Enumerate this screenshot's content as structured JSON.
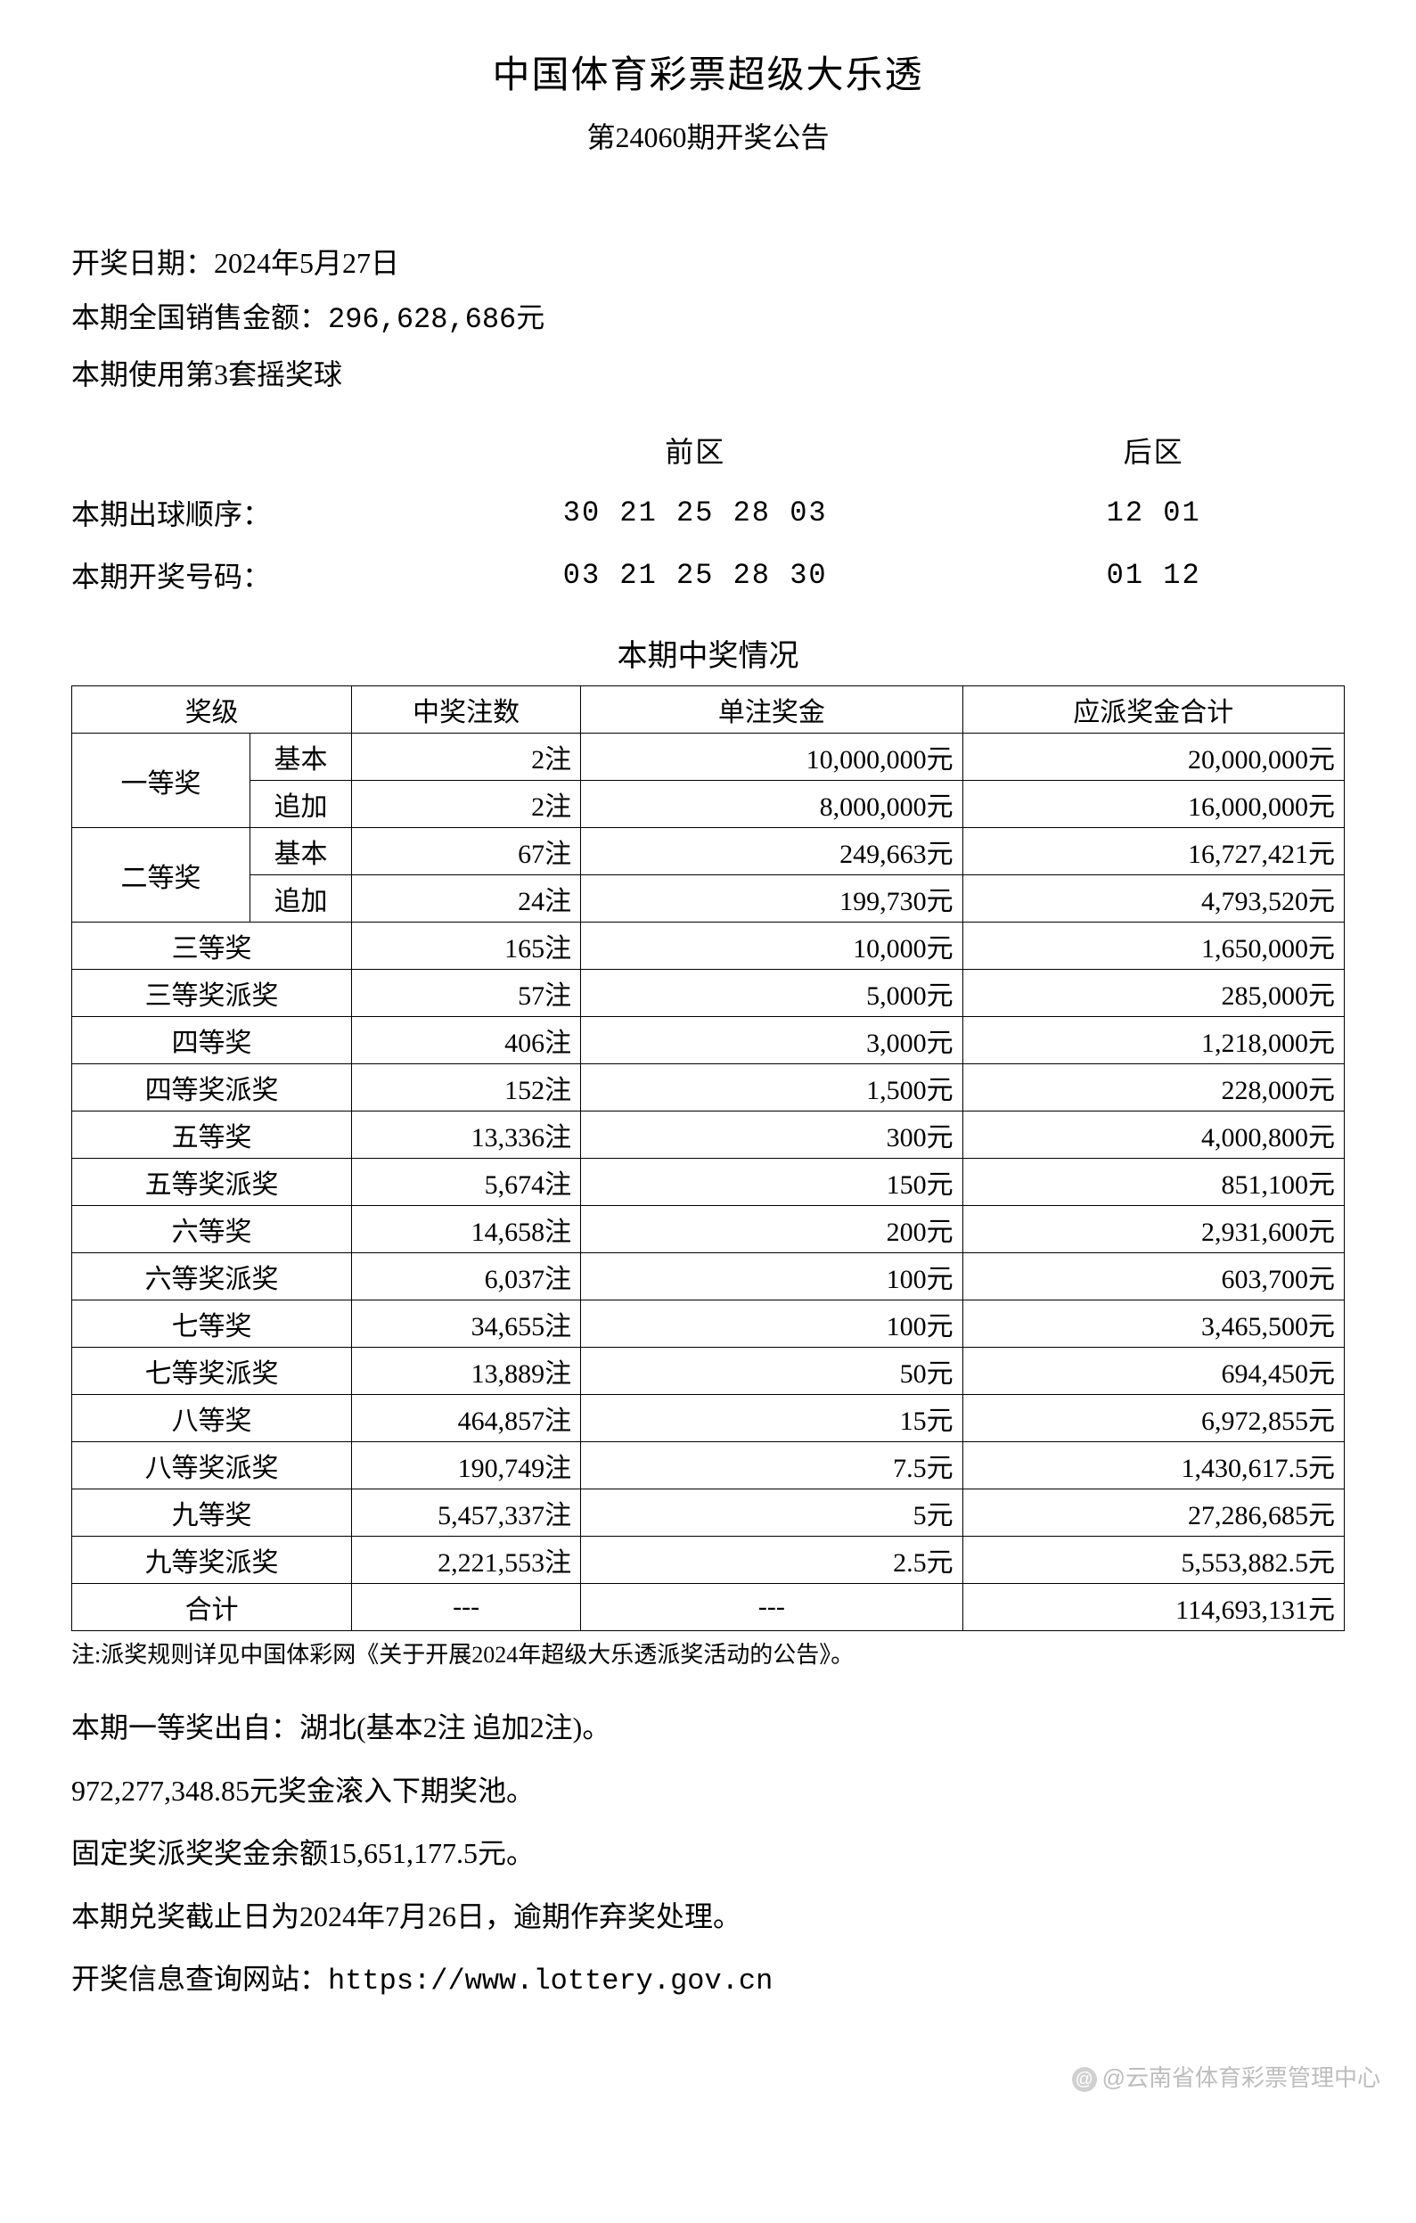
{
  "header": {
    "title": "中国体育彩票超级大乐透",
    "subtitle": "第24060期开奖公告"
  },
  "info": {
    "draw_date_label": "开奖日期：",
    "draw_date": "2024年5月27日",
    "sales_label": "本期全国销售金额：",
    "sales_amount": "296,628,686元",
    "ballset_text": "本期使用第3套摇奖球"
  },
  "numbers": {
    "front_header": "前区",
    "back_header": "后区",
    "order_label": "本期出球顺序：",
    "order_front": "30 21 25 28 03",
    "order_back": "12 01",
    "result_label": "本期开奖号码：",
    "result_front": "03 21 25 28 30",
    "result_back": "01 12"
  },
  "prize_section_title": "本期中奖情况",
  "prize_table": {
    "headers": {
      "level": "奖级",
      "count": "中奖注数",
      "unit": "单注奖金",
      "total": "应派奖金合计"
    },
    "first": {
      "label": "一等奖",
      "basic": {
        "sub": "基本",
        "count": "2注",
        "unit": "10,000,000元",
        "total": "20,000,000元"
      },
      "add": {
        "sub": "追加",
        "count": "2注",
        "unit": "8,000,000元",
        "total": "16,000,000元"
      }
    },
    "second": {
      "label": "二等奖",
      "basic": {
        "sub": "基本",
        "count": "67注",
        "unit": "249,663元",
        "total": "16,727,421元"
      },
      "add": {
        "sub": "追加",
        "count": "24注",
        "unit": "199,730元",
        "total": "4,793,520元"
      }
    },
    "rows": [
      {
        "level": "三等奖",
        "count": "165注",
        "unit": "10,000元",
        "total": "1,650,000元"
      },
      {
        "level": "三等奖派奖",
        "count": "57注",
        "unit": "5,000元",
        "total": "285,000元"
      },
      {
        "level": "四等奖",
        "count": "406注",
        "unit": "3,000元",
        "total": "1,218,000元"
      },
      {
        "level": "四等奖派奖",
        "count": "152注",
        "unit": "1,500元",
        "total": "228,000元"
      },
      {
        "level": "五等奖",
        "count": "13,336注",
        "unit": "300元",
        "total": "4,000,800元"
      },
      {
        "level": "五等奖派奖",
        "count": "5,674注",
        "unit": "150元",
        "total": "851,100元"
      },
      {
        "level": "六等奖",
        "count": "14,658注",
        "unit": "200元",
        "total": "2,931,600元"
      },
      {
        "level": "六等奖派奖",
        "count": "6,037注",
        "unit": "100元",
        "total": "603,700元"
      },
      {
        "level": "七等奖",
        "count": "34,655注",
        "unit": "100元",
        "total": "3,465,500元"
      },
      {
        "level": "七等奖派奖",
        "count": "13,889注",
        "unit": "50元",
        "total": "694,450元"
      },
      {
        "level": "八等奖",
        "count": "464,857注",
        "unit": "15元",
        "total": "6,972,855元"
      },
      {
        "level": "八等奖派奖",
        "count": "190,749注",
        "unit": "7.5元",
        "total": "1,430,617.5元"
      },
      {
        "level": "九等奖",
        "count": "5,457,337注",
        "unit": "5元",
        "total": "27,286,685元"
      },
      {
        "level": "九等奖派奖",
        "count": "2,221,553注",
        "unit": "2.5元",
        "total": "5,553,882.5元"
      }
    ],
    "sum": {
      "level": "合计",
      "count": "---",
      "unit": "---",
      "total": "114,693,131元"
    }
  },
  "footnote": "注:派奖规则详见中国体彩网《关于开展2024年超级大乐透派奖活动的公告》。",
  "post": {
    "origin": "本期一等奖出自：湖北(基本2注 追加2注)。",
    "rollover": "972,277,348.85元奖金滚入下期奖池。",
    "fixed_balance": "固定奖派奖奖金余额15,651,177.5元。",
    "deadline": "本期兑奖截止日为2024年7月26日，逾期作弃奖处理。",
    "website_label": "开奖信息查询网站：",
    "website_url": "https://www.lottery.gov.cn"
  },
  "watermark": "@云南省体育彩票管理中心"
}
